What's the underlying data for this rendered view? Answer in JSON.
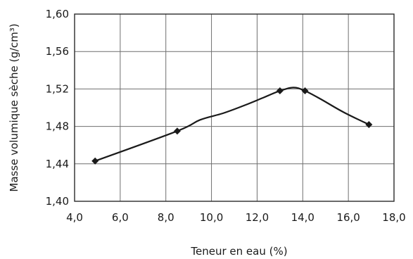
{
  "chart_data": {
    "type": "line",
    "xlabel": "Teneur en eau (%)",
    "ylabel": "Masse volumique sèche (g/cm³)",
    "xlim": [
      4.0,
      18.0
    ],
    "ylim": [
      1.4,
      1.6
    ],
    "x_ticks": [
      "4,0",
      "6,0",
      "8,0",
      "10,0",
      "12,0",
      "14,0",
      "16,0",
      "18,0"
    ],
    "y_ticks": [
      "1,40",
      "1,44",
      "1,48",
      "1,52",
      "1,56",
      "1,60"
    ],
    "grid": true,
    "series": [
      {
        "x": [
          4.9,
          8.5,
          13.0,
          14.1,
          16.9
        ],
        "y": [
          1.443,
          1.475,
          1.518,
          1.518,
          1.482
        ]
      }
    ],
    "curve": {
      "x": [
        4.9,
        8.5,
        9.5,
        10.5,
        11.5,
        12.3,
        13.0,
        13.6,
        14.1,
        14.8,
        15.8,
        16.9
      ],
      "y": [
        1.443,
        1.475,
        1.487,
        1.494,
        1.503,
        1.511,
        1.518,
        1.5215,
        1.518,
        1.509,
        1.495,
        1.482
      ]
    },
    "colors": {
      "line": "#1a1a1a",
      "grid": "#6f6f6f"
    }
  }
}
